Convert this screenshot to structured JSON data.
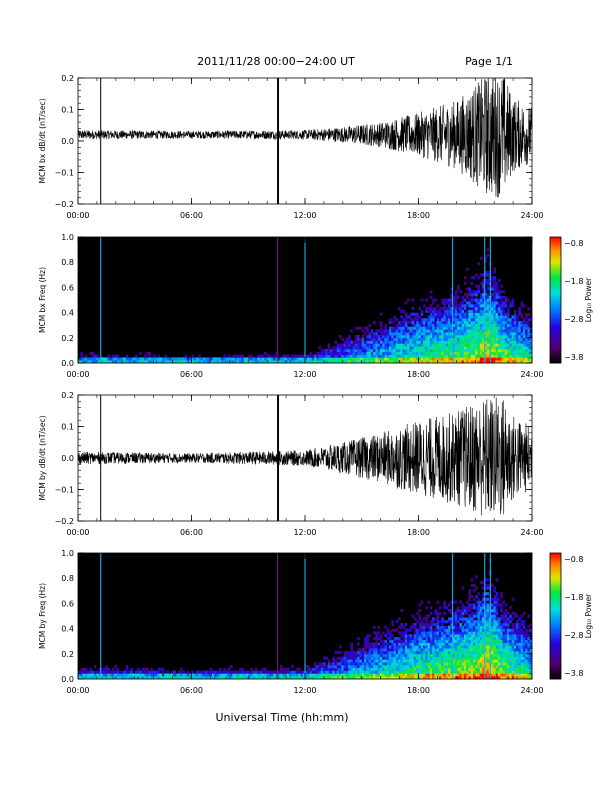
{
  "header": {
    "title": "2011/11/28  00:00−24:00 UT",
    "page": "Page 1/1"
  },
  "x_axis": {
    "label": "Universal Time (hh:mm)",
    "ticks": [
      "00:00",
      "06:00",
      "12:00",
      "18:00",
      "24:00"
    ]
  },
  "colorbar": {
    "label": "Log₁₀ Power",
    "ticks": [
      "−0.8",
      "−1.8",
      "−2.8",
      "−3.8"
    ],
    "range": [
      -3.8,
      -0.8
    ]
  },
  "chart_data": [
    {
      "type": "line",
      "panel": "bx-waveform",
      "ylabel": "MCM bx dB/dt (nT/sec)",
      "ylim": [
        -0.2,
        0.2
      ],
      "xlim": [
        0,
        24
      ],
      "yticks": [
        "0.2",
        "0.1",
        "0.0",
        "−0.1",
        "−0.2"
      ],
      "spikes_hours": [
        1.2,
        10.55,
        10.6
      ],
      "amplitude_envelope": {
        "x": [
          0,
          6,
          12,
          14,
          16,
          18,
          20,
          21,
          21.7,
          22.5,
          23,
          24
        ],
        "y": [
          0.015,
          0.012,
          0.015,
          0.025,
          0.04,
          0.07,
          0.11,
          0.16,
          0.2,
          0.2,
          0.12,
          0.09
        ]
      },
      "baseline": 0.02
    },
    {
      "type": "heatmap",
      "panel": "bx-spectrogram",
      "ylabel": "MCM bx Freq (Hz)",
      "ylim": [
        0.0,
        1.0
      ],
      "xlim": [
        0,
        24
      ],
      "yticks": [
        "1.0",
        "0.8",
        "0.6",
        "0.4",
        "0.2",
        "0.0"
      ],
      "vertical_lines_hours": [
        1.2,
        10.55,
        12.0,
        19.8,
        21.5,
        21.8
      ],
      "intensity_profile": {
        "x": [
          0,
          6,
          12,
          14,
          16,
          18,
          20,
          21,
          21.7,
          22.5,
          24
        ],
        "top_freq": [
          0.08,
          0.06,
          0.08,
          0.2,
          0.35,
          0.5,
          0.6,
          0.7,
          0.85,
          0.6,
          0.4
        ]
      }
    },
    {
      "type": "line",
      "panel": "by-waveform",
      "ylabel": "MCM by dB/dt (nT/sec)",
      "ylim": [
        -0.2,
        0.2
      ],
      "xlim": [
        0,
        24
      ],
      "yticks": [
        "0.2",
        "0.1",
        "0.0",
        "−0.1",
        "−0.2"
      ],
      "spikes_hours": [
        1.2,
        10.55,
        10.6
      ],
      "amplitude_envelope": {
        "x": [
          0,
          6,
          12,
          14,
          16,
          18,
          20,
          21,
          21.7,
          22.5,
          23,
          24
        ],
        "y": [
          0.02,
          0.015,
          0.025,
          0.05,
          0.08,
          0.12,
          0.15,
          0.18,
          0.2,
          0.2,
          0.14,
          0.1
        ]
      },
      "baseline": 0.0
    },
    {
      "type": "heatmap",
      "panel": "by-spectrogram",
      "ylabel": "MCM by Freq (Hz)",
      "ylim": [
        0.0,
        1.0
      ],
      "xlim": [
        0,
        24
      ],
      "yticks": [
        "1.0",
        "0.8",
        "0.6",
        "0.4",
        "0.2",
        "0.0"
      ],
      "vertical_lines_hours": [
        1.2,
        10.55,
        12.0,
        19.8,
        21.5,
        21.8
      ],
      "intensity_profile": {
        "x": [
          0,
          6,
          12,
          14,
          16,
          18,
          20,
          21,
          21.7,
          22.5,
          24
        ],
        "top_freq": [
          0.1,
          0.08,
          0.1,
          0.25,
          0.4,
          0.55,
          0.65,
          0.75,
          0.9,
          0.65,
          0.45
        ]
      }
    }
  ]
}
